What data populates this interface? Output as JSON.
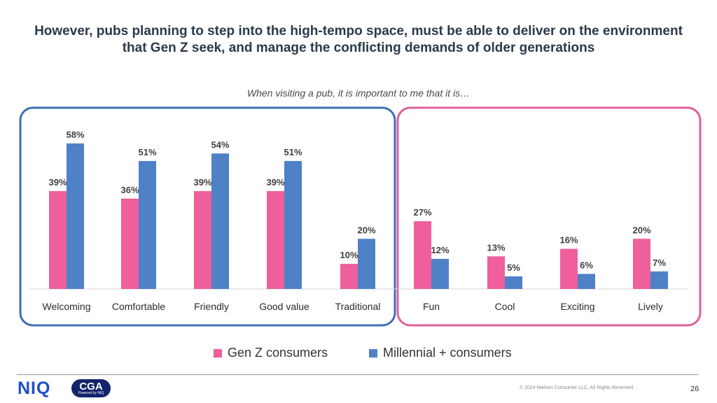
{
  "header": {
    "title_line1": "However, pubs planning to step into the high-tempo space, must be able to deliver on the environment",
    "title_line2": "that Gen Z seek, and manage the conflicting demands of older generations",
    "subtitle": "When visiting a pub, it is important to me that it is…"
  },
  "chart_data": {
    "type": "bar",
    "categories": [
      "Welcoming",
      "Comfortable",
      "Friendly",
      "Good value",
      "Traditional",
      "Fun",
      "Cool",
      "Exciting",
      "Lively"
    ],
    "series": [
      {
        "name": "Gen Z consumers",
        "values": [
          39,
          36,
          39,
          39,
          10,
          27,
          13,
          16,
          20
        ],
        "color": "#ee5f9b"
      },
      {
        "name": "Millennial + consumers",
        "values": [
          58,
          51,
          54,
          51,
          20,
          12,
          5,
          6,
          7
        ],
        "color": "#4f81c7"
      }
    ],
    "value_suffix": "%",
    "ylim": [
      0,
      60
    ],
    "grid": false,
    "legend_position": "bottom",
    "groups": [
      {
        "categories": [
          "Welcoming",
          "Comfortable",
          "Friendly",
          "Good value",
          "Traditional"
        ],
        "border_color": "#3d6fb4"
      },
      {
        "categories": [
          "Fun",
          "Cool",
          "Exciting",
          "Lively"
        ],
        "border_color": "#e0609a"
      }
    ]
  },
  "legend": {
    "genz": "Gen Z consumers",
    "millennial": "Millennial + consumers"
  },
  "footer": {
    "logo_niq": "NIQ",
    "logo_cga": "CGA",
    "logo_cga_tag": "Powered by NIQ",
    "copyright": "© 2024 Nielsen Consumer LLC. All Rights Reserved.",
    "page_number": "26"
  }
}
